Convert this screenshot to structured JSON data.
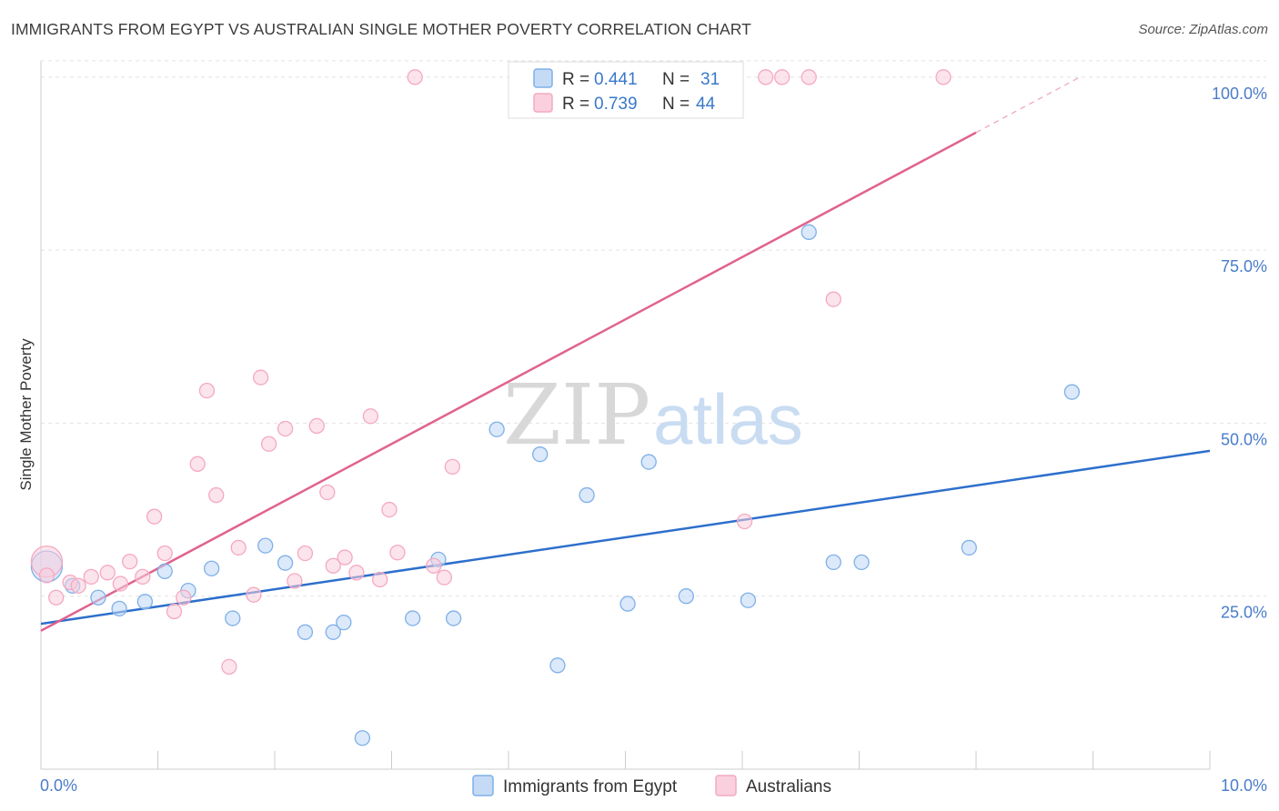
{
  "title": "IMMIGRANTS FROM EGYPT VS AUSTRALIAN SINGLE MOTHER POVERTY CORRELATION CHART",
  "source": "Source: ZipAtlas.com",
  "watermark": {
    "zip": "ZIP",
    "atlas": "atlas"
  },
  "chart_data": {
    "type": "scatter",
    "xlabel": "",
    "ylabel": "Single Mother Poverty",
    "xlim": [
      0,
      10
    ],
    "ylim": [
      0,
      103
    ],
    "x_tick_labels": [
      "0.0%",
      "10.0%"
    ],
    "y_ticks": [
      25,
      50,
      75,
      100
    ],
    "y_tick_labels": [
      "25.0%",
      "50.0%",
      "75.0%",
      "100.0%"
    ],
    "grid": true,
    "legend_position": "top-center",
    "legend": [
      {
        "r_label": "R =",
        "r_value": "0.441",
        "n_label": "N =",
        "n_value": "31"
      },
      {
        "r_label": "R =",
        "r_value": "0.739",
        "n_label": "N =",
        "n_value": "44"
      }
    ],
    "series": [
      {
        "name": "Immigrants from Egypt",
        "color": "#7fb0e8",
        "line_color": "#2d6fcc",
        "trend": {
          "x0": 0,
          "y0": 21.0,
          "x1": 10,
          "y1": 46.0
        },
        "points": [
          [
            0.05,
            29.3,
            "big"
          ],
          [
            0.27,
            26.5
          ],
          [
            0.49,
            24.8
          ],
          [
            0.67,
            23.2
          ],
          [
            0.89,
            24.2
          ],
          [
            1.06,
            28.6
          ],
          [
            1.26,
            25.8
          ],
          [
            1.46,
            29.0
          ],
          [
            1.64,
            21.8
          ],
          [
            1.92,
            32.3
          ],
          [
            2.09,
            29.8
          ],
          [
            2.26,
            19.8
          ],
          [
            2.5,
            19.8
          ],
          [
            2.59,
            21.2
          ],
          [
            2.75,
            4.5
          ],
          [
            3.18,
            21.8
          ],
          [
            3.4,
            30.3
          ],
          [
            3.53,
            21.8
          ],
          [
            3.9,
            49.1
          ],
          [
            4.27,
            45.5
          ],
          [
            4.42,
            15.0
          ],
          [
            4.67,
            39.6
          ],
          [
            5.02,
            23.9
          ],
          [
            5.2,
            44.4
          ],
          [
            5.52,
            25.0
          ],
          [
            6.05,
            24.4
          ],
          [
            6.57,
            77.6
          ],
          [
            6.78,
            29.9
          ],
          [
            7.02,
            29.9
          ],
          [
            7.94,
            32.0
          ],
          [
            8.82,
            54.5
          ]
        ]
      },
      {
        "name": "Australians",
        "color": "#f4a9c0",
        "line_color": "#e0628f",
        "trend": {
          "x0": 0,
          "y0": 20.0,
          "x1": 8.0,
          "y1": 92.0
        },
        "trend_dashed": {
          "x0": 8.0,
          "y0": 92.0,
          "x1": 8.9,
          "y1": 100.1
        },
        "points": [
          [
            0.05,
            30.0,
            "big"
          ],
          [
            0.05,
            28.0
          ],
          [
            0.13,
            24.8
          ],
          [
            0.25,
            27.0
          ],
          [
            0.32,
            26.5
          ],
          [
            0.43,
            27.8
          ],
          [
            0.57,
            28.4
          ],
          [
            0.68,
            26.8
          ],
          [
            0.76,
            30.0
          ],
          [
            0.87,
            27.8
          ],
          [
            0.97,
            36.5
          ],
          [
            1.06,
            31.2
          ],
          [
            1.14,
            22.8
          ],
          [
            1.22,
            24.8
          ],
          [
            1.34,
            44.1
          ],
          [
            1.42,
            54.7
          ],
          [
            1.5,
            39.6
          ],
          [
            1.61,
            14.8
          ],
          [
            1.69,
            32.0
          ],
          [
            1.82,
            25.2
          ],
          [
            1.88,
            56.6
          ],
          [
            1.95,
            47.0
          ],
          [
            2.09,
            49.2
          ],
          [
            2.17,
            27.2
          ],
          [
            2.26,
            31.2
          ],
          [
            2.36,
            49.6
          ],
          [
            2.45,
            40.0
          ],
          [
            2.5,
            29.4
          ],
          [
            2.6,
            30.6
          ],
          [
            2.7,
            28.4
          ],
          [
            2.82,
            51.0
          ],
          [
            2.9,
            27.4
          ],
          [
            2.98,
            37.5
          ],
          [
            3.05,
            31.3
          ],
          [
            3.2,
            100.0
          ],
          [
            3.36,
            29.4
          ],
          [
            3.45,
            27.7
          ],
          [
            3.52,
            43.7
          ],
          [
            6.02,
            35.8
          ],
          [
            6.2,
            100.0
          ],
          [
            6.34,
            100.0
          ],
          [
            6.57,
            100.0
          ],
          [
            6.78,
            67.9
          ],
          [
            7.72,
            100.0
          ]
        ]
      }
    ]
  }
}
